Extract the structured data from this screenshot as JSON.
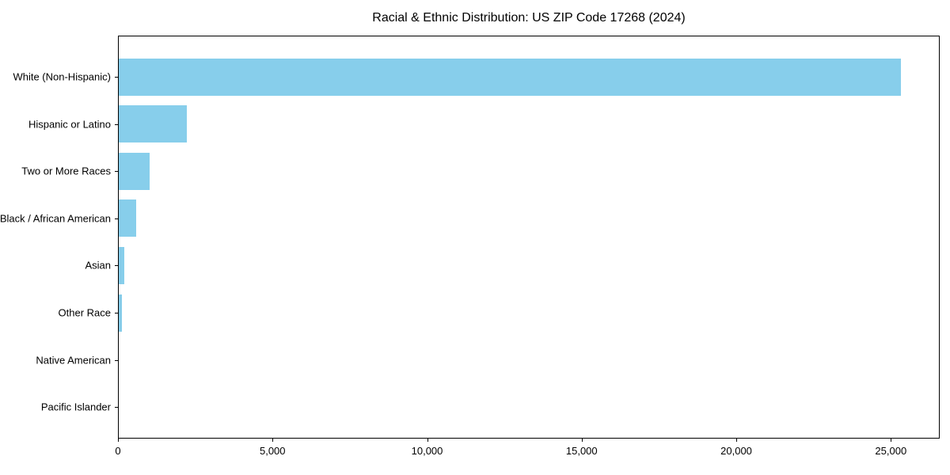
{
  "chart_data": {
    "type": "bar",
    "orientation": "horizontal",
    "title": "Racial & Ethnic Distribution: US ZIP Code 17268 (2024)",
    "categories": [
      "White (Non-Hispanic)",
      "Hispanic or Latino",
      "Two or More Races",
      "Black / African American",
      "Asian",
      "Other Race",
      "Native American",
      "Pacific Islander"
    ],
    "values": [
      25300,
      2200,
      1000,
      560,
      170,
      90,
      0,
      0
    ],
    "xlabel": "",
    "ylabel": "",
    "xlim": [
      0,
      26580
    ],
    "x_ticks": [
      0,
      5000,
      10000,
      15000,
      20000,
      25000
    ],
    "x_tick_labels": [
      "0",
      "5,000",
      "10,000",
      "15,000",
      "20,000",
      "25,000"
    ],
    "bar_color": "#87CEEB",
    "text_color": "#000000",
    "spine_color": "#000000",
    "background_color": "#FFFFFF",
    "grid": false,
    "legend": "none"
  }
}
